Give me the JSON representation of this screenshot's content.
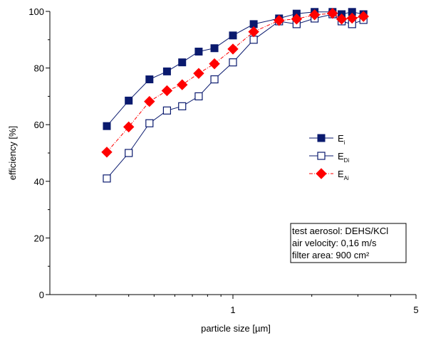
{
  "chart_data": {
    "type": "line",
    "xlabel": "particle size [µm]",
    "ylabel": "efficiency [%]",
    "x_scale": "log",
    "xlim": [
      0.2,
      5
    ],
    "ylim": [
      0,
      100
    ],
    "x_ticks": [
      1,
      5
    ],
    "x_tick_labels": [
      "1",
      "5"
    ],
    "y_ticks": [
      0,
      20,
      40,
      60,
      80,
      100
    ],
    "y_tick_labels": [
      "0",
      "20",
      "40",
      "60",
      "80",
      "100"
    ],
    "grid": false,
    "legend_position": "right-middle",
    "x": [
      0.33,
      0.4,
      0.48,
      0.56,
      0.64,
      0.74,
      0.85,
      1.0,
      1.2,
      1.5,
      1.75,
      2.05,
      2.4,
      2.6,
      2.85,
      3.15
    ],
    "series": [
      {
        "name": "E",
        "name_sub": "i",
        "marker": "filled-square",
        "color": "#0a1a6e",
        "line_style": "solid",
        "values": [
          59.5,
          68.5,
          76,
          78.8,
          82,
          85.8,
          87,
          91.5,
          95.5,
          97.5,
          99.2,
          99.8,
          99.8,
          99,
          99.8,
          99
        ]
      },
      {
        "name": "E",
        "name_sub": "Di",
        "marker": "open-square",
        "color": "#0a1a6e",
        "line_style": "solid",
        "values": [
          41,
          50,
          60.5,
          65,
          66.5,
          70,
          76,
          82,
          90,
          96.5,
          95.5,
          97.5,
          99,
          96.5,
          95.5,
          97
        ]
      },
      {
        "name": "E",
        "name_sub": "Ai",
        "marker": "filled-diamond",
        "color": "#ff0000",
        "line_style": "dash-dot",
        "values": [
          50.3,
          59.2,
          68.2,
          72,
          74.1,
          78.1,
          81.5,
          86.7,
          92.8,
          96.8,
          97.3,
          98.8,
          99.3,
          97.3,
          97.6,
          98.2
        ]
      }
    ],
    "annotation": [
      "test aerosol: DEHS/KCl",
      "air velocity: 0,16 m/s",
      "filter area: 900 cm²"
    ]
  }
}
